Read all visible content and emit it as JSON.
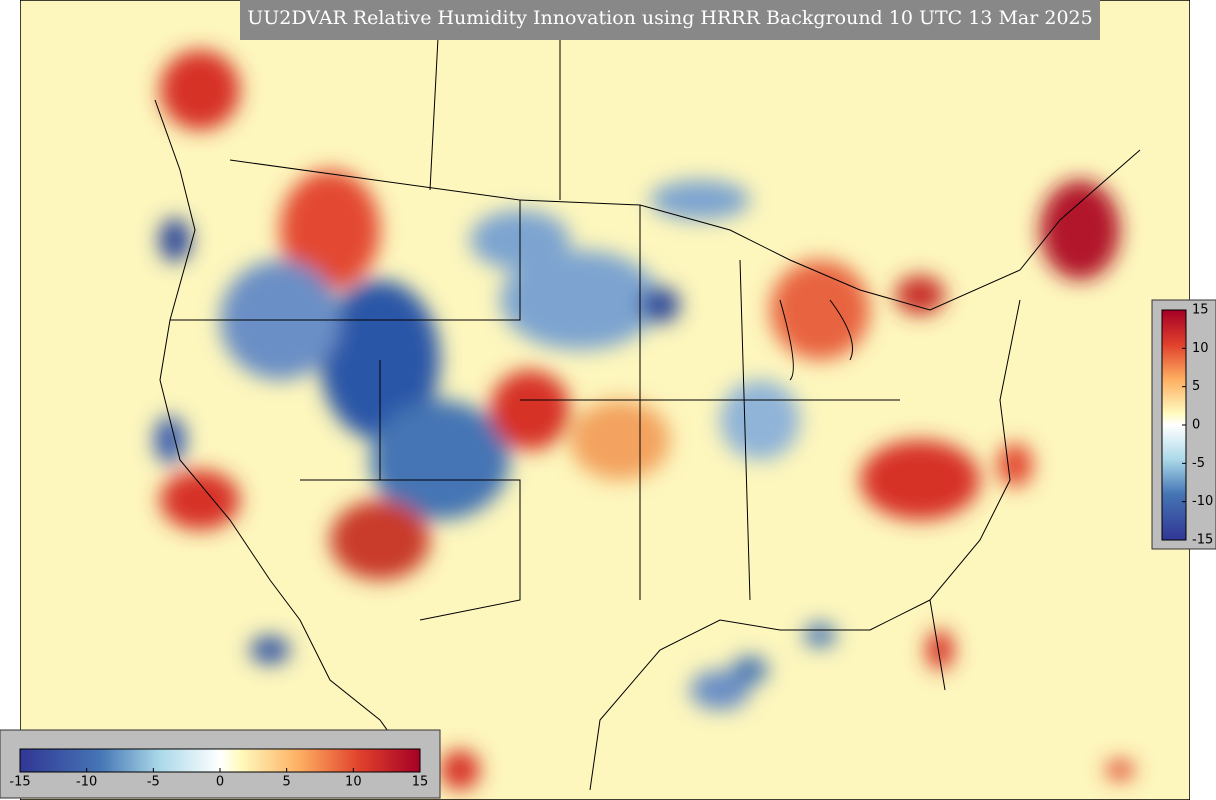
{
  "title": "UU2DVAR Relative Humidity Innovation using HRRR Background 10 UTC 13 Mar 2025",
  "colorbars": [
    {
      "orientation": "horizontal",
      "lim": [
        -15,
        15
      ],
      "ticks": [
        -15,
        -10,
        -5,
        0,
        5,
        10,
        15
      ]
    },
    {
      "orientation": "vertical",
      "lim": [
        -15,
        15
      ],
      "ticks": [
        -15,
        -10,
        -5,
        0,
        5,
        10,
        15
      ]
    }
  ]
}
